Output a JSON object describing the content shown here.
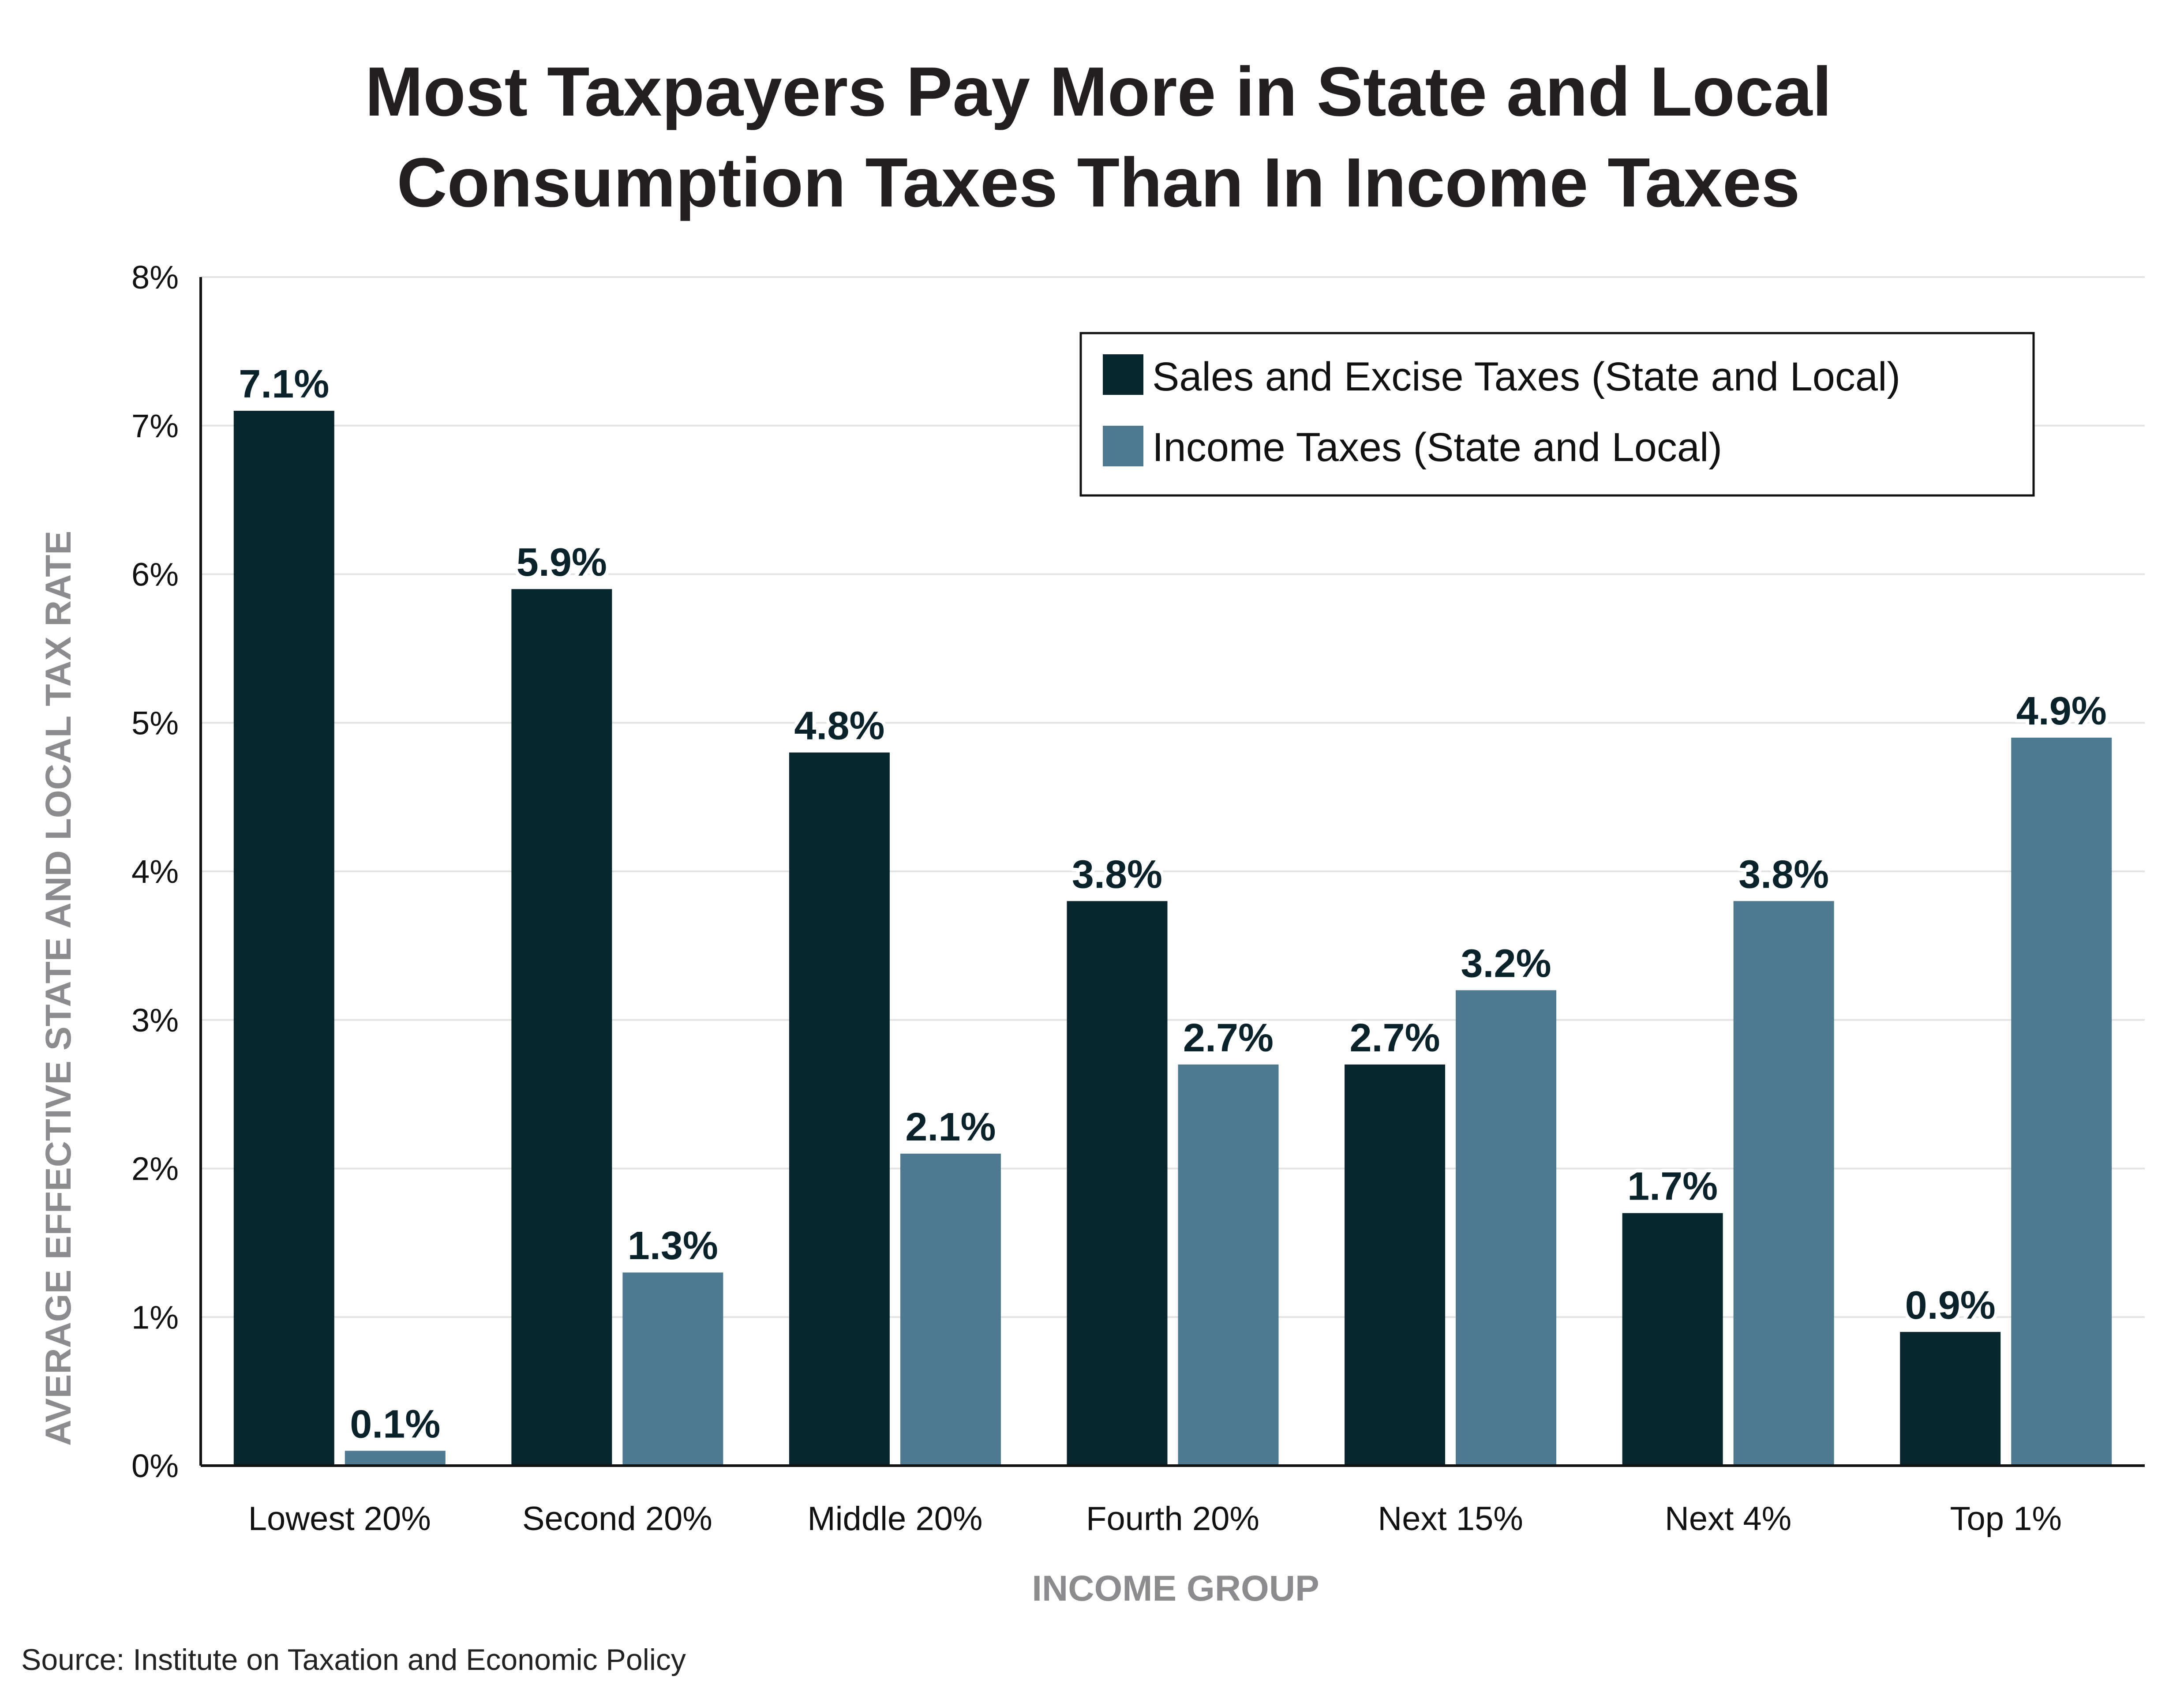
{
  "chart_data": {
    "type": "bar",
    "title_lines": [
      "Most Taxpayers Pay More in State and Local",
      "Consumption Taxes Than In Income Taxes"
    ],
    "xlabel": "INCOME GROUP",
    "ylabel": "AVERAGE EFFECTIVE STATE AND LOCAL TAX RATE",
    "categories": [
      "Lowest 20%",
      "Second 20%",
      "Middle 20%",
      "Fourth 20%",
      "Next 15%",
      "Next 4%",
      "Top 1%"
    ],
    "series": [
      {
        "name": "Sales and Excise Taxes (State and Local)",
        "color": "#08262e",
        "values": [
          7.1,
          5.9,
          4.8,
          3.8,
          2.7,
          1.7,
          0.9
        ],
        "labels": [
          "7.1%",
          "5.9%",
          "4.8%",
          "3.8%",
          "2.7%",
          "1.7%",
          "0.9%"
        ]
      },
      {
        "name": "Income Taxes (State and Local)",
        "color": "#4e7a91",
        "values": [
          0.1,
          1.3,
          2.1,
          2.7,
          3.2,
          3.8,
          4.9
        ],
        "labels": [
          "0.1%",
          "1.3%",
          "2.1%",
          "2.7%",
          "3.2%",
          "3.8%",
          "4.9%"
        ]
      }
    ],
    "ylim": [
      0,
      8
    ],
    "yticks": [
      0,
      1,
      2,
      3,
      4,
      5,
      6,
      7,
      8
    ],
    "ytick_labels": [
      "0%",
      "1%",
      "2%",
      "3%",
      "4%",
      "5%",
      "6%",
      "7%",
      "8%"
    ],
    "grid": true,
    "legend_position": "top-right",
    "source": "Source: Institute on Taxation and Economic Policy"
  }
}
